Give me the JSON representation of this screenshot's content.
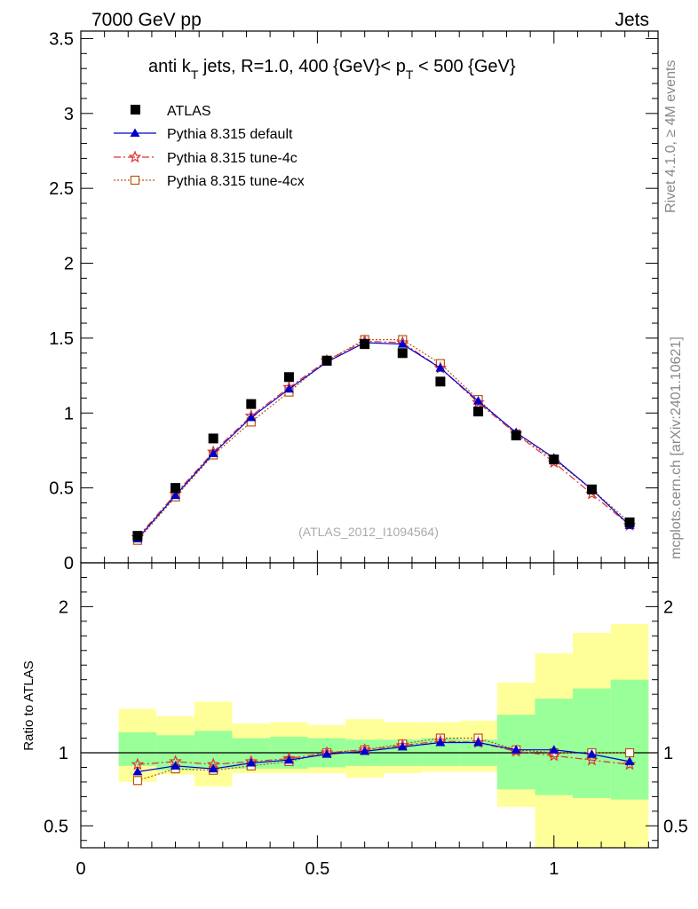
{
  "header": {
    "left": "7000 GeV pp",
    "right": "Jets"
  },
  "side_labels": {
    "rivet": "Rivet 4.1.0, ≥ 4M events",
    "mcplots": "mcplots.cern.ch [arXiv:2401.10621]"
  },
  "title": {
    "pre": "anti k",
    "sub1": "T",
    "mid": " jets, R=1.0,  400 {GeV}< p",
    "sub2": "T",
    "post": " < 500 {GeV}"
  },
  "watermark": "(ATLAS_2012_I1094564)",
  "ratio_label": "Ratio to ATLAS",
  "colors": {
    "atlas": "#000000",
    "default": "#0000cc",
    "tune4c": "#dd3333",
    "tune4cx": "#bb5511",
    "band_inner": "#99ff99",
    "band_outer": "#ffff99"
  },
  "legend": [
    {
      "key": "atlas",
      "label": "ATLAS"
    },
    {
      "key": "default",
      "label": "Pythia 8.315 default"
    },
    {
      "key": "tune4c",
      "label": "Pythia 8.315 tune-4c"
    },
    {
      "key": "tune4cx",
      "label": "Pythia 8.315 tune-4cx"
    }
  ],
  "chart_data": {
    "type": "scatter",
    "x": [
      0.12,
      0.2,
      0.28,
      0.36,
      0.44,
      0.52,
      0.6,
      0.68,
      0.76,
      0.84,
      0.92,
      1.0,
      1.08,
      1.16
    ],
    "bin_edges": [
      0.08,
      0.16,
      0.24,
      0.32,
      0.4,
      0.48,
      0.56,
      0.64,
      0.72,
      0.8,
      0.88,
      0.96,
      1.04,
      1.12,
      1.2
    ],
    "xlim": [
      0,
      1.22
    ],
    "xticks": [
      {
        "value": 0,
        "label": "0"
      },
      {
        "value": 0.5,
        "label": "0.5"
      },
      {
        "value": 1,
        "label": "1"
      }
    ],
    "main": {
      "ylim": [
        0,
        3.55
      ],
      "yticks": [
        {
          "value": 0,
          "label": "0"
        },
        {
          "value": 0.5,
          "label": "0.5"
        },
        {
          "value": 1,
          "label": "1"
        },
        {
          "value": 1.5,
          "label": "1.5"
        },
        {
          "value": 2,
          "label": "2"
        },
        {
          "value": 2.5,
          "label": "2.5"
        },
        {
          "value": 3,
          "label": "3"
        },
        {
          "value": 3.5,
          "label": "3.5"
        }
      ],
      "series": [
        {
          "name": "ATLAS",
          "key": "atlas",
          "values": [
            0.18,
            0.5,
            0.83,
            1.06,
            1.24,
            1.35,
            1.46,
            1.4,
            1.21,
            1.01,
            0.85,
            0.69,
            0.49,
            0.27
          ]
        },
        {
          "name": "Pythia 8.315 default",
          "key": "default",
          "values": [
            0.16,
            0.45,
            0.73,
            0.97,
            1.16,
            1.34,
            1.47,
            1.46,
            1.3,
            1.08,
            0.87,
            0.7,
            0.49,
            0.25
          ]
        },
        {
          "name": "Pythia 8.315 tune-4c",
          "key": "tune4c",
          "values": [
            0.17,
            0.46,
            0.74,
            0.98,
            1.17,
            1.35,
            1.48,
            1.47,
            1.3,
            1.07,
            0.86,
            0.67,
            0.46,
            0.25
          ]
        },
        {
          "name": "Pythia 8.315 tune-4cx",
          "key": "tune4cx",
          "values": [
            0.15,
            0.44,
            0.72,
            0.94,
            1.14,
            1.35,
            1.49,
            1.49,
            1.33,
            1.09,
            0.86,
            0.69,
            0.49,
            0.27
          ]
        }
      ]
    },
    "ratio": {
      "ylim": [
        0.35,
        2.3
      ],
      "yticks": [
        {
          "value": 0.5,
          "label": "0.5"
        },
        {
          "value": 1,
          "label": "1"
        },
        {
          "value": 2,
          "label": "2"
        }
      ],
      "band_inner": [
        [
          0.91,
          1.14
        ],
        [
          0.88,
          1.12
        ],
        [
          0.89,
          1.15
        ],
        [
          0.89,
          1.1
        ],
        [
          0.89,
          1.11
        ],
        [
          0.9,
          1.1
        ],
        [
          0.91,
          1.09
        ],
        [
          0.91,
          1.09
        ],
        [
          0.91,
          1.1
        ],
        [
          0.91,
          1.09
        ],
        [
          0.75,
          1.26
        ],
        [
          0.71,
          1.37
        ],
        [
          0.69,
          1.44
        ],
        [
          0.68,
          1.5
        ]
      ],
      "band_outer": [
        [
          0.8,
          1.3
        ],
        [
          0.85,
          1.25
        ],
        [
          0.77,
          1.35
        ],
        [
          0.86,
          1.2
        ],
        [
          0.86,
          1.21
        ],
        [
          0.86,
          1.19
        ],
        [
          0.83,
          1.23
        ],
        [
          0.86,
          1.21
        ],
        [
          0.87,
          1.21
        ],
        [
          0.87,
          1.22
        ],
        [
          0.63,
          1.48
        ],
        [
          0.35,
          1.68
        ],
        [
          0.35,
          1.82
        ],
        [
          0.35,
          1.88
        ]
      ],
      "series": [
        {
          "name": "Pythia 8.315 default",
          "key": "default",
          "values": [
            0.87,
            0.91,
            0.89,
            0.93,
            0.95,
            0.99,
            1.01,
            1.04,
            1.07,
            1.07,
            1.02,
            1.02,
            0.99,
            0.94
          ]
        },
        {
          "name": "Pythia 8.315 tune-4c",
          "key": "tune4c",
          "values": [
            0.92,
            0.94,
            0.92,
            0.94,
            0.96,
            1.0,
            1.02,
            1.05,
            1.08,
            1.07,
            1.01,
            0.98,
            0.95,
            0.92
          ]
        },
        {
          "name": "Pythia 8.315 tune-4cx",
          "key": "tune4cx",
          "values": [
            0.81,
            0.89,
            0.88,
            0.91,
            0.94,
            1.0,
            1.02,
            1.06,
            1.1,
            1.1,
            1.02,
            1.0,
            1.0,
            1.0
          ]
        }
      ]
    }
  }
}
